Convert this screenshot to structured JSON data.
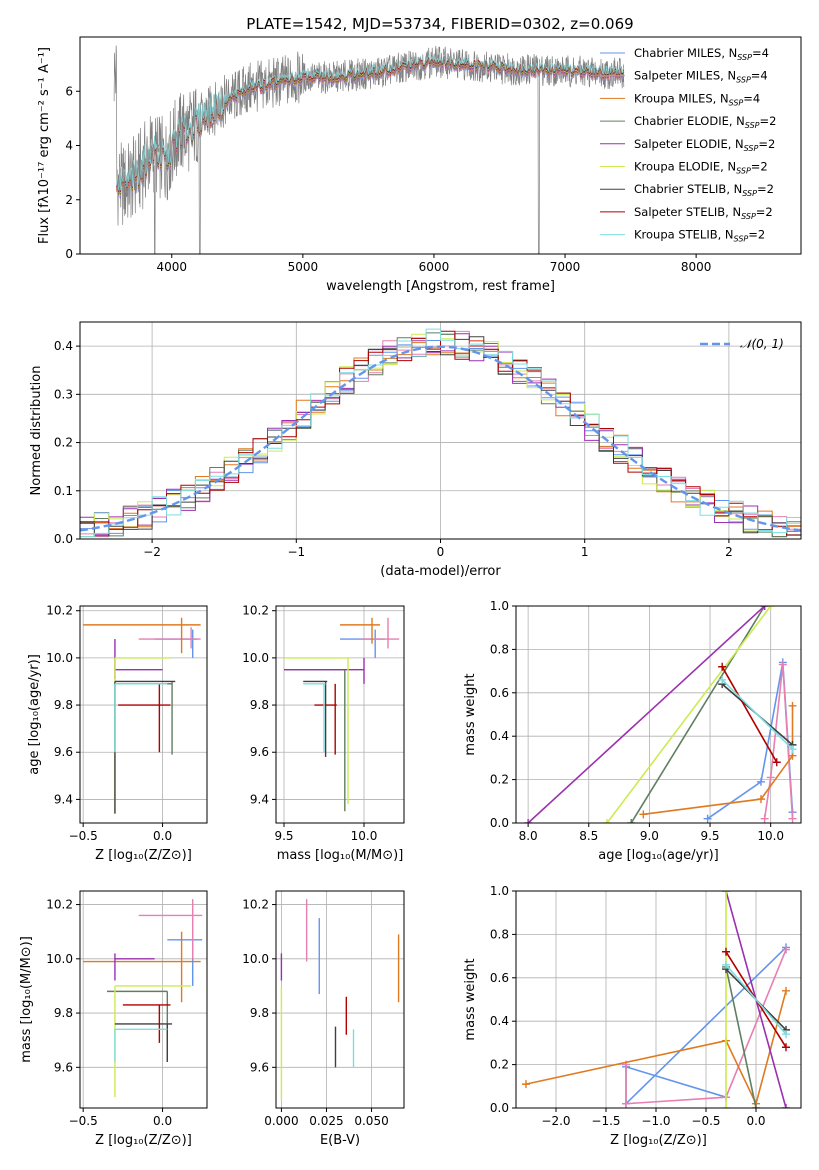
{
  "title": "PLATE=1542, MJD=53734, FIBERID=0302, z=0.069",
  "colors": {
    "chabrier_miles": "#6495ED",
    "salpeter_miles": "#E77FB0",
    "kroupa_miles": "#E07A20",
    "chabrier_elodie": "#5F7F5F",
    "salpeter_elodie": "#9B30B0",
    "kroupa_elodie": "#CCEB50",
    "chabrier_stelib": "#404040",
    "salpeter_stelib": "#B00000",
    "kroupa_stelib": "#7FDDE0",
    "data": "#808080",
    "normal": "#6495ED",
    "grid": "#b0b0b0"
  },
  "models": [
    {
      "key": "chabrier_miles",
      "label": "Chabrier MILES, N",
      "n": "=4"
    },
    {
      "key": "salpeter_miles",
      "label": "Salpeter MILES, N",
      "n": "=4"
    },
    {
      "key": "kroupa_miles",
      "label": "Kroupa MILES, N",
      "n": "=4"
    },
    {
      "key": "chabrier_elodie",
      "label": "Chabrier ELODIE, N",
      "n": "=2"
    },
    {
      "key": "salpeter_elodie",
      "label": "Salpeter ELODIE, N",
      "n": "=2"
    },
    {
      "key": "kroupa_elodie",
      "label": "Kroupa ELODIE, N",
      "n": "=2"
    },
    {
      "key": "chabrier_stelib",
      "label": "Chabrier STELIB, N",
      "n": "=2"
    },
    {
      "key": "salpeter_stelib",
      "label": "Salpeter STELIB, N",
      "n": "=2"
    },
    {
      "key": "kroupa_stelib",
      "label": "Kroupa STELIB, N",
      "n": "=2"
    }
  ],
  "chart_data": [
    {
      "id": "spectrum",
      "type": "line",
      "xlabel": "wavelength [Angstrom, rest frame]",
      "ylabel": "Flux [fλ10⁻¹⁷ erg cm⁻² s⁻¹ A⁻¹]",
      "xlim": [
        3300,
        8800
      ],
      "ylim": [
        0,
        8
      ],
      "xticks": [
        4000,
        5000,
        6000,
        7000,
        8000
      ],
      "yticks": [
        0,
        2,
        4,
        6
      ],
      "continuum": {
        "x": [
          3580,
          3650,
          3750,
          3850,
          3950,
          4050,
          4150,
          4250,
          4400,
          4600,
          4800,
          5000,
          5200,
          5400,
          5600,
          5800,
          6000,
          6200,
          6400,
          6600,
          6800,
          7000,
          7200,
          7400
        ],
        "y": [
          2.6,
          2.5,
          3.0,
          3.8,
          3.4,
          4.4,
          4.6,
          5.1,
          5.6,
          6.1,
          6.3,
          6.5,
          6.5,
          6.6,
          6.7,
          6.9,
          7.1,
          7.0,
          6.9,
          6.8,
          6.8,
          6.75,
          6.7,
          6.65
        ]
      },
      "model_extent": [
        3580,
        7450
      ],
      "data_extent": [
        3560,
        7450
      ],
      "legend": "top-right"
    },
    {
      "id": "residual_histogram",
      "type": "line",
      "xlabel": "(data-model)/error",
      "ylabel": "Normed distribution",
      "xlim": [
        -2.5,
        2.5
      ],
      "ylim": [
        0,
        0.45
      ],
      "xticks": [
        -2,
        -1,
        0,
        1,
        2
      ],
      "yticks": [
        0.0,
        0.1,
        0.2,
        0.3,
        0.4
      ],
      "bin_width": 0.1,
      "normal_curve": {
        "label": "𝒩(0, 1)",
        "mu": 0,
        "sigma": 1
      },
      "legend": "top-right"
    },
    {
      "id": "age_vs_metallicity",
      "type": "scatter",
      "xlabel": "Z [log₁₀(Z/Z⊙)]",
      "ylabel": "age  [log₁₀(age/yr)]",
      "xlim": [
        -0.52,
        0.28
      ],
      "ylim": [
        9.3,
        10.22
      ],
      "xticks": [
        -0.5,
        0.0
      ],
      "yticks": [
        9.4,
        9.6,
        9.8,
        10.0,
        10.2
      ],
      "points": [
        {
          "key": "chabrier_miles",
          "x": 0.19,
          "xlo": -0.05,
          "xhi": 0.22,
          "y": 10.08,
          "ylo": 10.0,
          "yhi": 10.12
        },
        {
          "key": "salpeter_miles",
          "x": 0.18,
          "xlo": -0.15,
          "xhi": 0.24,
          "y": 10.08,
          "ylo": 10.04,
          "yhi": 10.13
        },
        {
          "key": "kroupa_miles",
          "x": 0.12,
          "xlo": -0.5,
          "xhi": 0.24,
          "y": 10.14,
          "ylo": 10.02,
          "yhi": 10.17
        },
        {
          "key": "chabrier_elodie",
          "x": 0.06,
          "xlo": -0.3,
          "xhi": 0.06,
          "y": 9.89,
          "ylo": 9.59,
          "yhi": 9.9
        },
        {
          "key": "salpeter_elodie",
          "x": -0.3,
          "xlo": -0.3,
          "xhi": 0.0,
          "y": 9.95,
          "ylo": 9.91,
          "yhi": 10.08
        },
        {
          "key": "kroupa_elodie",
          "x": -0.3,
          "xlo": -0.3,
          "xhi": 0.05,
          "y": 10.0,
          "ylo": 9.34,
          "yhi": 10.0
        },
        {
          "key": "chabrier_stelib",
          "x": -0.3,
          "xlo": -0.3,
          "xhi": 0.08,
          "y": 9.9,
          "ylo": 9.34,
          "yhi": 9.9
        },
        {
          "key": "salpeter_stelib",
          "x": -0.02,
          "xlo": -0.28,
          "xhi": 0.05,
          "y": 9.8,
          "ylo": 9.6,
          "yhi": 9.89
        },
        {
          "key": "kroupa_stelib",
          "x": -0.3,
          "xlo": -0.3,
          "xhi": 0.03,
          "y": 9.89,
          "ylo": 9.6,
          "yhi": 9.89
        }
      ]
    },
    {
      "id": "age_vs_mass",
      "type": "scatter",
      "xlabel": "mass [log₁₀(M/M⊙)]",
      "ylabel": "",
      "xlim": [
        9.45,
        10.25
      ],
      "ylim": [
        9.3,
        10.22
      ],
      "xticks": [
        9.5,
        10.0
      ],
      "yticks": [
        9.4,
        9.6,
        9.8,
        10.0,
        10.2
      ],
      "points": [
        {
          "key": "chabrier_miles",
          "x": 10.07,
          "xlo": 9.85,
          "xhi": 10.13,
          "y": 10.08,
          "ylo": 10.0,
          "yhi": 10.12
        },
        {
          "key": "salpeter_miles",
          "x": 10.15,
          "xlo": 9.98,
          "xhi": 10.22,
          "y": 10.08,
          "ylo": 10.04,
          "yhi": 10.17
        },
        {
          "key": "kroupa_miles",
          "x": 10.05,
          "xlo": 9.85,
          "xhi": 10.1,
          "y": 10.14,
          "ylo": 10.06,
          "yhi": 10.17
        },
        {
          "key": "chabrier_elodie",
          "x": 9.88,
          "xlo": 9.5,
          "xhi": 9.88,
          "y": 9.95,
          "ylo": 9.35,
          "yhi": 9.95
        },
        {
          "key": "salpeter_elodie",
          "x": 10.0,
          "xlo": 9.5,
          "xhi": 10.0,
          "y": 9.95,
          "ylo": 9.89,
          "yhi": 10.0
        },
        {
          "key": "kroupa_elodie",
          "x": 9.9,
          "xlo": 9.5,
          "xhi": 9.9,
          "y": 10.0,
          "ylo": 9.38,
          "yhi": 10.0
        },
        {
          "key": "chabrier_stelib",
          "x": 9.76,
          "xlo": 9.62,
          "xhi": 9.77,
          "y": 9.9,
          "ylo": 9.58,
          "yhi": 9.9
        },
        {
          "key": "salpeter_stelib",
          "x": 9.82,
          "xlo": 9.69,
          "xhi": 9.83,
          "y": 9.8,
          "ylo": 9.59,
          "yhi": 9.89
        },
        {
          "key": "kroupa_stelib",
          "x": 9.75,
          "xlo": 9.62,
          "xhi": 9.76,
          "y": 9.89,
          "ylo": 9.6,
          "yhi": 9.89
        }
      ]
    },
    {
      "id": "weight_vs_age",
      "type": "line",
      "xlabel": "age  [log₁₀(age/yr)]",
      "ylabel": "mass weight",
      "xlim": [
        7.9,
        10.25
      ],
      "ylim": [
        0,
        1
      ],
      "xticks": [
        8.0,
        8.5,
        9.0,
        9.5,
        10.0
      ],
      "yticks": [
        0.0,
        0.2,
        0.4,
        0.6,
        0.8,
        1.0
      ],
      "series": [
        {
          "key": "chabrier_miles",
          "x": [
            9.48,
            9.92,
            10.1,
            10.18
          ],
          "y": [
            0.02,
            0.19,
            0.74,
            0.05
          ]
        },
        {
          "key": "salpeter_miles",
          "x": [
            9.95,
            10.0,
            10.1,
            10.18
          ],
          "y": [
            0.02,
            0.21,
            0.73,
            0.02
          ]
        },
        {
          "key": "kroupa_miles",
          "x": [
            8.95,
            9.92,
            10.18,
            10.18
          ],
          "y": [
            0.04,
            0.11,
            0.31,
            0.54
          ]
        },
        {
          "key": "chabrier_elodie",
          "x": [
            8.85,
            9.95
          ],
          "y": [
            0.0,
            1.0
          ]
        },
        {
          "key": "salpeter_elodie",
          "x": [
            8.0,
            9.95
          ],
          "y": [
            0.0,
            1.0
          ]
        },
        {
          "key": "kroupa_elodie",
          "x": [
            8.65,
            10.0
          ],
          "y": [
            0.0,
            1.0
          ]
        },
        {
          "key": "chabrier_stelib",
          "x": [
            9.6,
            10.18
          ],
          "y": [
            0.64,
            0.36
          ]
        },
        {
          "key": "salpeter_stelib",
          "x": [
            9.6,
            10.05
          ],
          "y": [
            0.72,
            0.28
          ]
        },
        {
          "key": "kroupa_stelib",
          "x": [
            9.6,
            10.18
          ],
          "y": [
            0.66,
            0.34
          ]
        }
      ]
    },
    {
      "id": "mass_vs_metallicity",
      "type": "scatter",
      "xlabel": "Z [log₁₀(Z/Z⊙)]",
      "ylabel": "mass [log₁₀(M/M⊙)]",
      "xlim": [
        -0.52,
        0.28
      ],
      "ylim": [
        9.45,
        10.25
      ],
      "xticks": [
        -0.5,
        0.0
      ],
      "yticks": [
        9.6,
        9.8,
        10.0,
        10.2
      ],
      "points": [
        {
          "key": "chabrier_miles",
          "x": 0.19,
          "xlo": 0.03,
          "xhi": 0.25,
          "y": 10.07,
          "ylo": 9.9,
          "yhi": 10.07
        },
        {
          "key": "salpeter_miles",
          "x": 0.19,
          "xlo": -0.15,
          "xhi": 0.25,
          "y": 10.16,
          "ylo": 10.0,
          "yhi": 10.22
        },
        {
          "key": "kroupa_miles",
          "x": 0.12,
          "xlo": -0.5,
          "xhi": 0.24,
          "y": 9.99,
          "ylo": 9.84,
          "yhi": 10.1
        },
        {
          "key": "chabrier_elodie",
          "x": 0.03,
          "xlo": -0.35,
          "xhi": 0.03,
          "y": 9.88,
          "ylo": 9.62,
          "yhi": 9.88
        },
        {
          "key": "salpeter_elodie",
          "x": -0.3,
          "xlo": -0.3,
          "xhi": -0.05,
          "y": 10.0,
          "ylo": 9.92,
          "yhi": 10.02
        },
        {
          "key": "kroupa_elodie",
          "x": -0.3,
          "xlo": -0.3,
          "xhi": 0.18,
          "y": 9.9,
          "ylo": 9.49,
          "yhi": 9.9
        },
        {
          "key": "chabrier_stelib",
          "x": 0.03,
          "xlo": -0.3,
          "xhi": 0.06,
          "y": 9.76,
          "ylo": 9.62,
          "yhi": 9.76
        },
        {
          "key": "salpeter_stelib",
          "x": -0.02,
          "xlo": -0.25,
          "xhi": 0.05,
          "y": 9.83,
          "ylo": 9.69,
          "yhi": 9.83
        },
        {
          "key": "kroupa_stelib",
          "x": -0.3,
          "xlo": -0.3,
          "xhi": 0.03,
          "y": 9.74,
          "ylo": 9.62,
          "yhi": 9.74
        }
      ]
    },
    {
      "id": "mass_vs_ebv",
      "type": "scatter",
      "xlabel": "E(B-V)",
      "ylabel": "",
      "xlim": [
        -0.003,
        0.068
      ],
      "ylim": [
        9.45,
        10.25
      ],
      "xticks": [
        0.0,
        0.025,
        0.05
      ],
      "xtick_labels": [
        "0.000",
        "0.025",
        "0.050"
      ],
      "yticks": [
        9.6,
        9.8,
        10.0,
        10.2
      ],
      "points": [
        {
          "key": "chabrier_miles",
          "x": 0.021,
          "ylo": 9.87,
          "yhi": 10.15
        },
        {
          "key": "salpeter_miles",
          "x": 0.014,
          "ylo": 9.99,
          "yhi": 10.22
        },
        {
          "key": "kroupa_miles",
          "x": 0.065,
          "ylo": 9.84,
          "yhi": 10.09
        },
        {
          "key": "salpeter_elodie",
          "x": 0.0,
          "ylo": 9.92,
          "yhi": 10.02
        },
        {
          "key": "kroupa_elodie",
          "x": 0.0,
          "ylo": 9.48,
          "yhi": 9.9
        },
        {
          "key": "chabrier_stelib",
          "x": 0.03,
          "ylo": 9.6,
          "yhi": 9.75
        },
        {
          "key": "salpeter_stelib",
          "x": 0.036,
          "ylo": 9.72,
          "yhi": 9.86
        },
        {
          "key": "kroupa_stelib",
          "x": 0.04,
          "ylo": 9.6,
          "yhi": 9.74
        }
      ]
    },
    {
      "id": "weight_vs_metallicity",
      "type": "line",
      "xlabel": "Z [log₁₀(Z/Z⊙)]",
      "ylabel": "mass weight",
      "xlim": [
        -2.4,
        0.45
      ],
      "ylim": [
        0,
        1
      ],
      "xticks": [
        -2.0,
        -1.5,
        -1.0,
        -0.5,
        0.0
      ],
      "yticks": [
        0.0,
        0.2,
        0.4,
        0.6,
        0.8,
        1.0
      ],
      "series": [
        {
          "key": "chabrier_miles",
          "x": [
            -0.3,
            -1.3,
            -1.3,
            0.3
          ],
          "y": [
            0.05,
            0.19,
            0.02,
            0.74
          ]
        },
        {
          "key": "salpeter_miles",
          "x": [
            -1.3,
            -1.3,
            -0.3,
            0.3
          ],
          "y": [
            0.2,
            0.02,
            0.05,
            0.73
          ]
        },
        {
          "key": "kroupa_miles",
          "x": [
            -2.3,
            -0.3,
            0.0,
            0.3
          ],
          "y": [
            0.11,
            0.31,
            0.02,
            0.54
          ]
        },
        {
          "key": "chabrier_elodie",
          "x": [
            -0.3,
            0.0
          ],
          "y": [
            0.65,
            0.0
          ]
        },
        {
          "key": "salpeter_elodie",
          "x": [
            -0.3,
            0.3
          ],
          "y": [
            1.0,
            0.0
          ]
        },
        {
          "key": "kroupa_elodie",
          "x": [
            -0.3,
            -0.3
          ],
          "y": [
            1.0,
            0.0
          ]
        },
        {
          "key": "chabrier_stelib",
          "x": [
            -0.3,
            0.3
          ],
          "y": [
            0.64,
            0.36
          ]
        },
        {
          "key": "salpeter_stelib",
          "x": [
            -0.3,
            0.3
          ],
          "y": [
            0.72,
            0.28
          ]
        },
        {
          "key": "kroupa_stelib",
          "x": [
            -0.3,
            0.3
          ],
          "y": [
            0.66,
            0.34
          ]
        }
      ]
    }
  ]
}
